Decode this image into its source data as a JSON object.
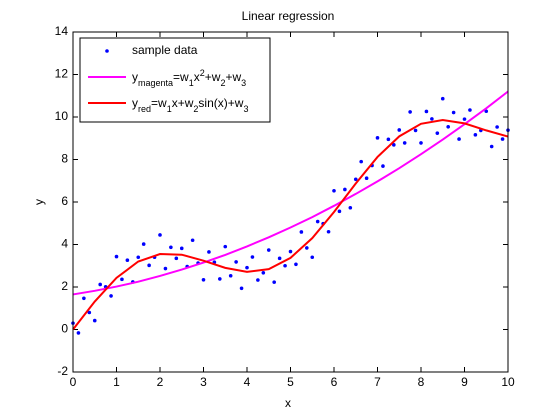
{
  "chart_data": {
    "type": "line",
    "title": "Linear regression",
    "x_label": "x",
    "y_label": "y",
    "xlim": [
      0,
      10
    ],
    "xticks": [
      0,
      1,
      2,
      3,
      4,
      5,
      6,
      7,
      8,
      9,
      10
    ],
    "ylim": [
      -2,
      14
    ],
    "yticks": [
      -2,
      0,
      2,
      4,
      6,
      8,
      10,
      12,
      14
    ],
    "grid": false,
    "legend": "upper left",
    "series": [
      {
        "name": "sample data",
        "type": "scatter",
        "color": "#0000ff",
        "x": [
          0,
          0.125,
          0.25,
          0.375,
          0.5,
          0.625,
          0.75,
          0.875,
          1,
          1.125,
          1.25,
          1.375,
          1.5,
          1.625,
          1.75,
          1.875,
          2,
          2.125,
          2.25,
          2.375,
          2.5,
          2.625,
          2.75,
          2.875,
          3,
          3.125,
          3.25,
          3.375,
          3.5,
          3.625,
          3.75,
          3.875,
          4,
          4.125,
          4.25,
          4.375,
          4.5,
          4.625,
          4.75,
          4.875,
          5,
          5.125,
          5.25,
          5.375,
          5.5,
          5.625,
          5.75,
          5.875,
          6,
          6.125,
          6.25,
          6.375,
          6.5,
          6.625,
          6.75,
          6.875,
          7,
          7.125,
          7.25,
          7.375,
          7.5,
          7.625,
          7.75,
          7.875,
          8,
          8.125,
          8.25,
          8.375,
          8.5,
          8.625,
          8.75,
          8.875,
          9,
          9.125,
          9.25,
          9.375,
          9.5,
          9.625,
          9.75,
          9.875,
          10
        ],
        "values": [
          0.3,
          -0.16,
          1.47,
          0.8,
          0.42,
          2.12,
          2.01,
          1.58,
          3.43,
          2.36,
          3.26,
          2.24,
          3.4,
          4.02,
          3.02,
          3.4,
          4.45,
          2.87,
          3.87,
          3.35,
          3.82,
          2.96,
          4.2,
          3.13,
          2.34,
          3.65,
          3.17,
          2.38,
          3.9,
          2.53,
          3.18,
          1.94,
          2.91,
          3.41,
          2.33,
          2.67,
          3.74,
          2.23,
          3.35,
          3.0,
          3.67,
          3.07,
          4.59,
          3.84,
          3.4,
          5.08,
          4.98,
          4.6,
          6.53,
          5.56,
          6.59,
          5.73,
          7.07,
          7.9,
          7.12,
          7.72,
          9.02,
          7.69,
          8.95,
          8.69,
          9.39,
          8.78,
          10.24,
          9.37,
          8.78,
          10.26,
          9.91,
          9.24,
          10.86,
          9.54,
          10.21,
          8.96,
          9.9,
          10.33,
          9.16,
          9.37,
          10.27,
          8.61,
          9.53,
          8.96,
          9.38
        ]
      },
      {
        "name": [
          {
            "text": "y"
          },
          {
            "text": "magenta",
            "shift": "sub"
          },
          {
            "text": "=w"
          },
          {
            "text": "1",
            "shift": "sub"
          },
          {
            "text": "x"
          },
          {
            "text": "2",
            "shift": "super"
          },
          {
            "text": "+w"
          },
          {
            "text": "2",
            "shift": "sub"
          },
          {
            "text": "+w"
          },
          {
            "text": "3",
            "shift": "sub"
          }
        ],
        "type": "line",
        "color": "#ff00ff",
        "x": [
          0,
          0.5,
          1,
          1.5,
          2,
          2.5,
          3,
          3.5,
          4,
          4.5,
          5,
          5.5,
          6,
          6.5,
          7,
          7.5,
          8,
          8.5,
          9,
          9.5,
          10
        ],
        "values": [
          1.65,
          1.82,
          2.02,
          2.25,
          2.52,
          2.82,
          3.15,
          3.51,
          3.91,
          4.34,
          4.8,
          5.29,
          5.82,
          6.38,
          6.97,
          7.59,
          8.25,
          8.94,
          9.66,
          10.41,
          11.2
        ]
      },
      {
        "name": [
          {
            "text": "y"
          },
          {
            "text": "red",
            "shift": "sub"
          },
          {
            "text": "=w"
          },
          {
            "text": "1",
            "shift": "sub"
          },
          {
            "text": "x+w"
          },
          {
            "text": "2",
            "shift": "sub"
          },
          {
            "text": "sin(x)+w"
          },
          {
            "text": "3",
            "shift": "sub"
          }
        ],
        "type": "line",
        "color": "#ff0000",
        "x": [
          0,
          0.5,
          1,
          1.5,
          2,
          2.5,
          3,
          3.5,
          4,
          4.5,
          5,
          5.5,
          6,
          6.5,
          7,
          7.5,
          8,
          8.5,
          9,
          9.5,
          10
        ],
        "values": [
          0,
          1.315,
          2.43,
          3.2,
          3.55,
          3.52,
          3.24,
          2.9,
          2.71,
          2.84,
          3.37,
          4.3,
          5.53,
          6.87,
          8.12,
          9.09,
          9.68,
          9.86,
          9.7,
          9.37,
          9.08
        ]
      }
    ]
  }
}
